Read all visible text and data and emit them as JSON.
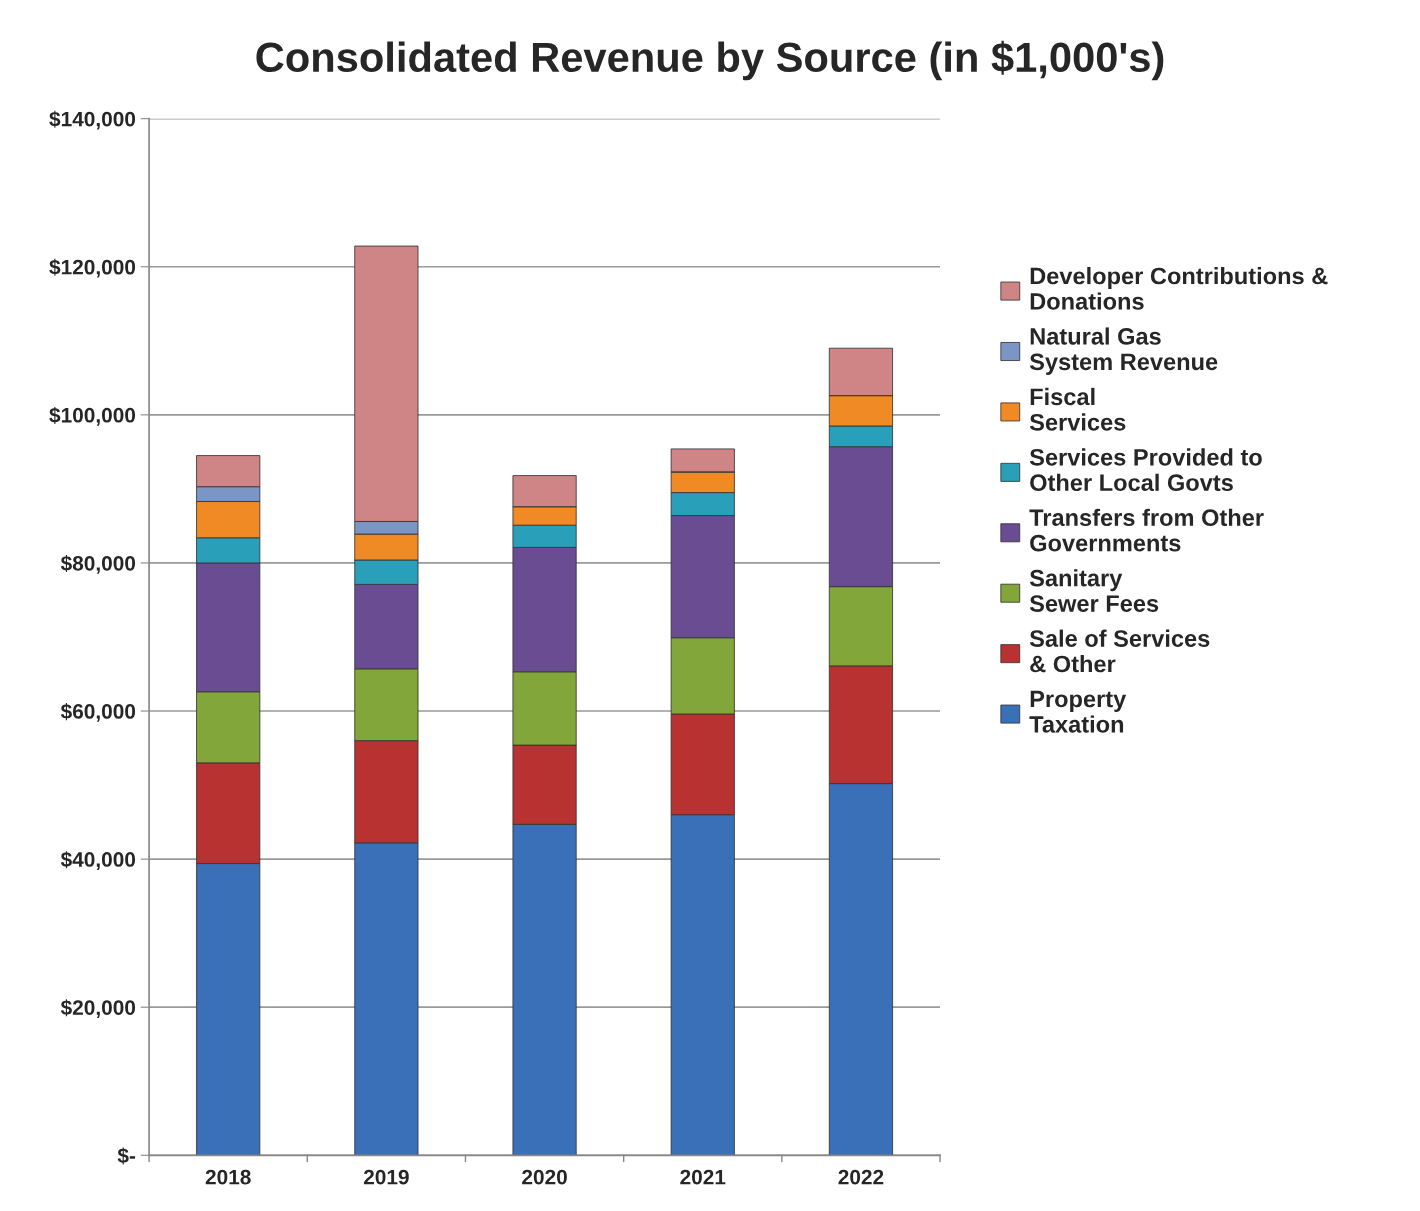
{
  "chart_data": {
    "type": "bar",
    "title": "Consolidated Revenue by Source (in $1,000's)",
    "categories": [
      "2018",
      "2019",
      "2020",
      "2021",
      "2022"
    ],
    "stacked": true,
    "series": [
      {
        "name": "Property\nTaxation",
        "color": "#3a70b8",
        "values": [
          39400,
          42200,
          44700,
          46000,
          50200
        ]
      },
      {
        "name": "Sale of Services\n& Other",
        "color": "#b83232",
        "values": [
          13600,
          13800,
          10700,
          13600,
          15900
        ]
      },
      {
        "name": "Sanitary\nSewer Fees",
        "color": "#82a63a",
        "values": [
          9600,
          9700,
          9900,
          10300,
          10700
        ]
      },
      {
        "name": "Transfers from Other\nGovernments",
        "color": "#6a4c92",
        "values": [
          17400,
          11400,
          16800,
          16500,
          18900
        ]
      },
      {
        "name": "Services Provided to\nOther Local Govts",
        "color": "#2a9fba",
        "values": [
          3400,
          3300,
          3000,
          3100,
          2800
        ]
      },
      {
        "name": "Fiscal\nServices",
        "color": "#f08a24",
        "values": [
          4900,
          3500,
          2500,
          2800,
          4100
        ]
      },
      {
        "name": "Natural Gas\nSystem Revenue",
        "color": "#7b95c4",
        "values": [
          2000,
          1700,
          0,
          0,
          0
        ]
      },
      {
        "name": "Developer Contributions &\nDonations",
        "color": "#cf8585",
        "values": [
          4200,
          37200,
          4200,
          3100,
          6400
        ]
      }
    ],
    "ylim": [
      0,
      140000
    ],
    "yticks": [
      {
        "value": 0,
        "label": "$-"
      },
      {
        "value": 20000,
        "label": "$20,000"
      },
      {
        "value": 40000,
        "label": "$40,000"
      },
      {
        "value": 60000,
        "label": "$60,000"
      },
      {
        "value": 80000,
        "label": "$80,000"
      },
      {
        "value": 100000,
        "label": "$100,000"
      },
      {
        "value": 120000,
        "label": "$120,000"
      },
      {
        "value": 140000,
        "label": "$140,000"
      }
    ],
    "grid": "y",
    "legend": "right"
  }
}
